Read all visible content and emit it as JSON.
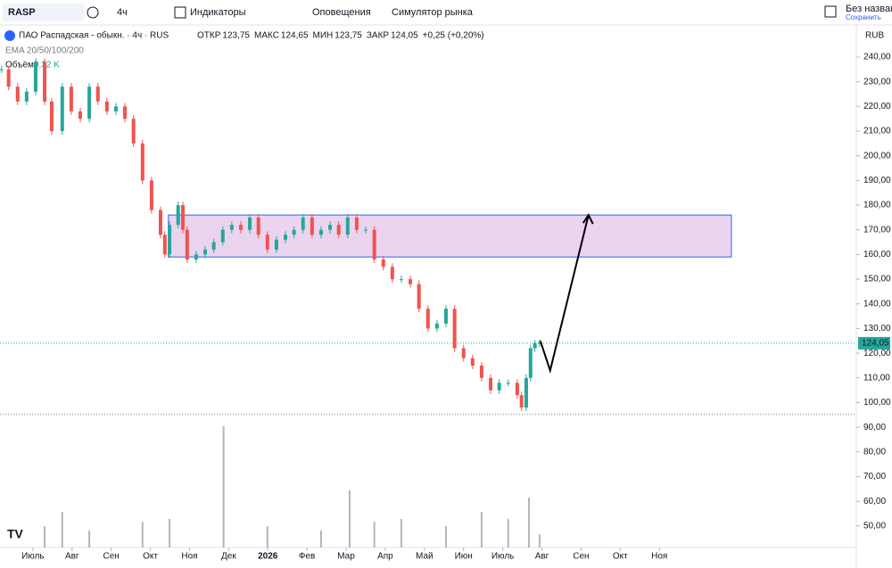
{
  "toolbar": {
    "symbol": "RASP",
    "interval": "4ч",
    "indicators": "Индикаторы",
    "alerts": "Оповещения",
    "simulator": "Симулятор рынка",
    "layout_name": "Без названия",
    "save": "Сохранить"
  },
  "chart_data": {
    "type": "candlestick",
    "title": "ПАО Распадская - обыкн. · 4ч · RUS",
    "ohlc": {
      "open_label": "ОТКР",
      "open": "123,75",
      "high_label": "МАКС",
      "high": "124,65",
      "low_label": "МИН",
      "low": "123,75",
      "close_label": "ЗАКР",
      "close": "124,05",
      "change": "+0,25 (+0,20%)"
    },
    "indicator": "EMA 20/50/100/200",
    "volume_label": "Объём",
    "volume_value": "9,32 K",
    "currency": "RUB",
    "up_color": "#26a69a",
    "down_color": "#ef5350",
    "x": [
      -0.8,
      -0.62,
      -0.39,
      -0.16,
      0.07,
      0.3,
      0.48,
      0.75,
      0.98,
      1.21,
      1.44,
      1.66,
      1.89,
      2.12,
      2.35,
      2.57,
      2.8,
      3.03,
      3.26,
      3.37,
      3.49,
      3.71,
      3.83,
      3.94,
      4.17,
      4.4,
      4.62,
      4.85,
      5.08,
      5.31,
      5.54,
      5.76,
      5.99,
      6.22,
      6.45,
      6.67,
      6.9,
      7.13,
      7.36,
      7.59,
      7.81,
      8.04,
      8.27,
      8.5,
      8.72,
      8.95,
      9.18,
      9.41,
      9.64,
      9.86,
      10.09,
      10.32,
      10.55,
      10.77,
      11,
      11.23,
      11.46,
      11.69,
      11.91,
      12.14,
      12.37,
      12.48,
      12.6,
      12.71,
      12.82,
      12.94
    ],
    "values": [
      235,
      228,
      222,
      226,
      238,
      222,
      210,
      228,
      218,
      215,
      228,
      222,
      218,
      220,
      215,
      205,
      190,
      178,
      168,
      160,
      172,
      180,
      170,
      158,
      160,
      162,
      165,
      170,
      172,
      170,
      175,
      168,
      162,
      166,
      168,
      170,
      175,
      168,
      170,
      172,
      168,
      175,
      170,
      170,
      158,
      155,
      150,
      150,
      148,
      138,
      130,
      132,
      138,
      122,
      118,
      115,
      110,
      105,
      108,
      108,
      103,
      98,
      110,
      122,
      124,
      124.05
    ],
    "last_value_label": "124,05",
    "low_line": 95.2,
    "volume": {
      "x": [
        0.3,
        0.75,
        1.44,
        2.8,
        3.49,
        4.87,
        5.99,
        7.36,
        8.09,
        8.72,
        9.41,
        10.55,
        11.46,
        12.14,
        12.67,
        12.94
      ],
      "values": [
        15,
        25,
        12,
        18,
        20,
        85,
        15,
        12,
        40,
        18,
        20,
        15,
        25,
        20,
        35,
        9.32
      ],
      "lim": [
        0,
        100
      ],
      "color": "#b2b5be"
    },
    "drawings": {
      "box": {
        "x": [
          3.46,
          17.84
        ],
        "y": [
          159,
          176
        ],
        "color": "#9c27b0"
      },
      "arrow": {
        "x": [
          12.96,
          13.21,
          14.19
        ],
        "y": [
          125,
          113,
          176
        ]
      }
    },
    "xlim": [
      -0.84,
      21.03
    ],
    "xticks": [
      {
        "value": 0,
        "label": "Июль"
      },
      {
        "value": 1,
        "label": "Авг"
      },
      {
        "value": 2,
        "label": "Сен"
      },
      {
        "value": 3,
        "label": "Окт"
      },
      {
        "value": 4,
        "label": "Ноя"
      },
      {
        "value": 5,
        "label": "Дек"
      },
      {
        "value": 6,
        "label": "2026"
      },
      {
        "value": 7,
        "label": "Фев"
      },
      {
        "value": 8,
        "label": "Мар"
      },
      {
        "value": 9,
        "label": "Апр"
      },
      {
        "value": 10,
        "label": "Май"
      },
      {
        "value": 11,
        "label": "Июн"
      },
      {
        "value": 12,
        "label": "Июль"
      },
      {
        "value": 13,
        "label": "Авг"
      },
      {
        "value": 14,
        "label": "Сен"
      },
      {
        "value": 15,
        "label": "Окт"
      },
      {
        "value": 16,
        "label": "Ноя"
      }
    ],
    "ylim": [
      48.5,
      240
    ],
    "yticks": [
      {
        "value": 240,
        "label": "240,00"
      },
      {
        "value": 230,
        "label": "230,00"
      },
      {
        "value": 220,
        "label": "220,00"
      },
      {
        "value": 210,
        "label": "210,00"
      },
      {
        "value": 200,
        "label": "200,00"
      },
      {
        "value": 190,
        "label": "190,00"
      },
      {
        "value": 180,
        "label": "180,00"
      },
      {
        "value": 170,
        "label": "170,00"
      },
      {
        "value": 160,
        "label": "160,00"
      },
      {
        "value": 150,
        "label": "150,00"
      },
      {
        "value": 140,
        "label": "140,00"
      },
      {
        "value": 130,
        "label": "130,00"
      },
      {
        "value": 120,
        "label": "120,00"
      },
      {
        "value": 110,
        "label": "110,00"
      },
      {
        "value": 100,
        "label": "100,00"
      },
      {
        "value": 90,
        "label": "90,00"
      },
      {
        "value": 80,
        "label": "80,00"
      },
      {
        "value": 70,
        "label": "70,00"
      },
      {
        "value": 60,
        "label": "60,00"
      },
      {
        "value": 50,
        "label": "50,00"
      }
    ]
  }
}
